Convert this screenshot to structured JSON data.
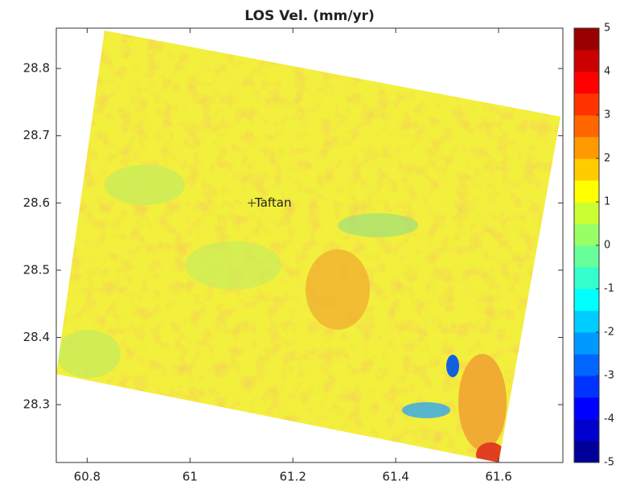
{
  "chart_data": {
    "type": "raster-map",
    "title": "LOS Vel. (mm/yr)",
    "xlim": [
      60.74,
      61.725
    ],
    "xticks": [
      60.8,
      61,
      61.2,
      61.4,
      61.6
    ],
    "ylim": [
      28.214,
      28.86
    ],
    "yticks": [
      28.3,
      28.4,
      28.5,
      28.6,
      28.7,
      28.8
    ],
    "colorbar": {
      "colormap": "jet",
      "lim": [
        -5,
        5
      ],
      "ticks": [
        -5,
        -4,
        -3,
        -2,
        -1,
        0,
        1,
        2,
        3,
        4,
        5
      ]
    },
    "annotations": [
      {
        "text": "Taftan",
        "x": 61.12,
        "y": 28.6
      }
    ]
  }
}
